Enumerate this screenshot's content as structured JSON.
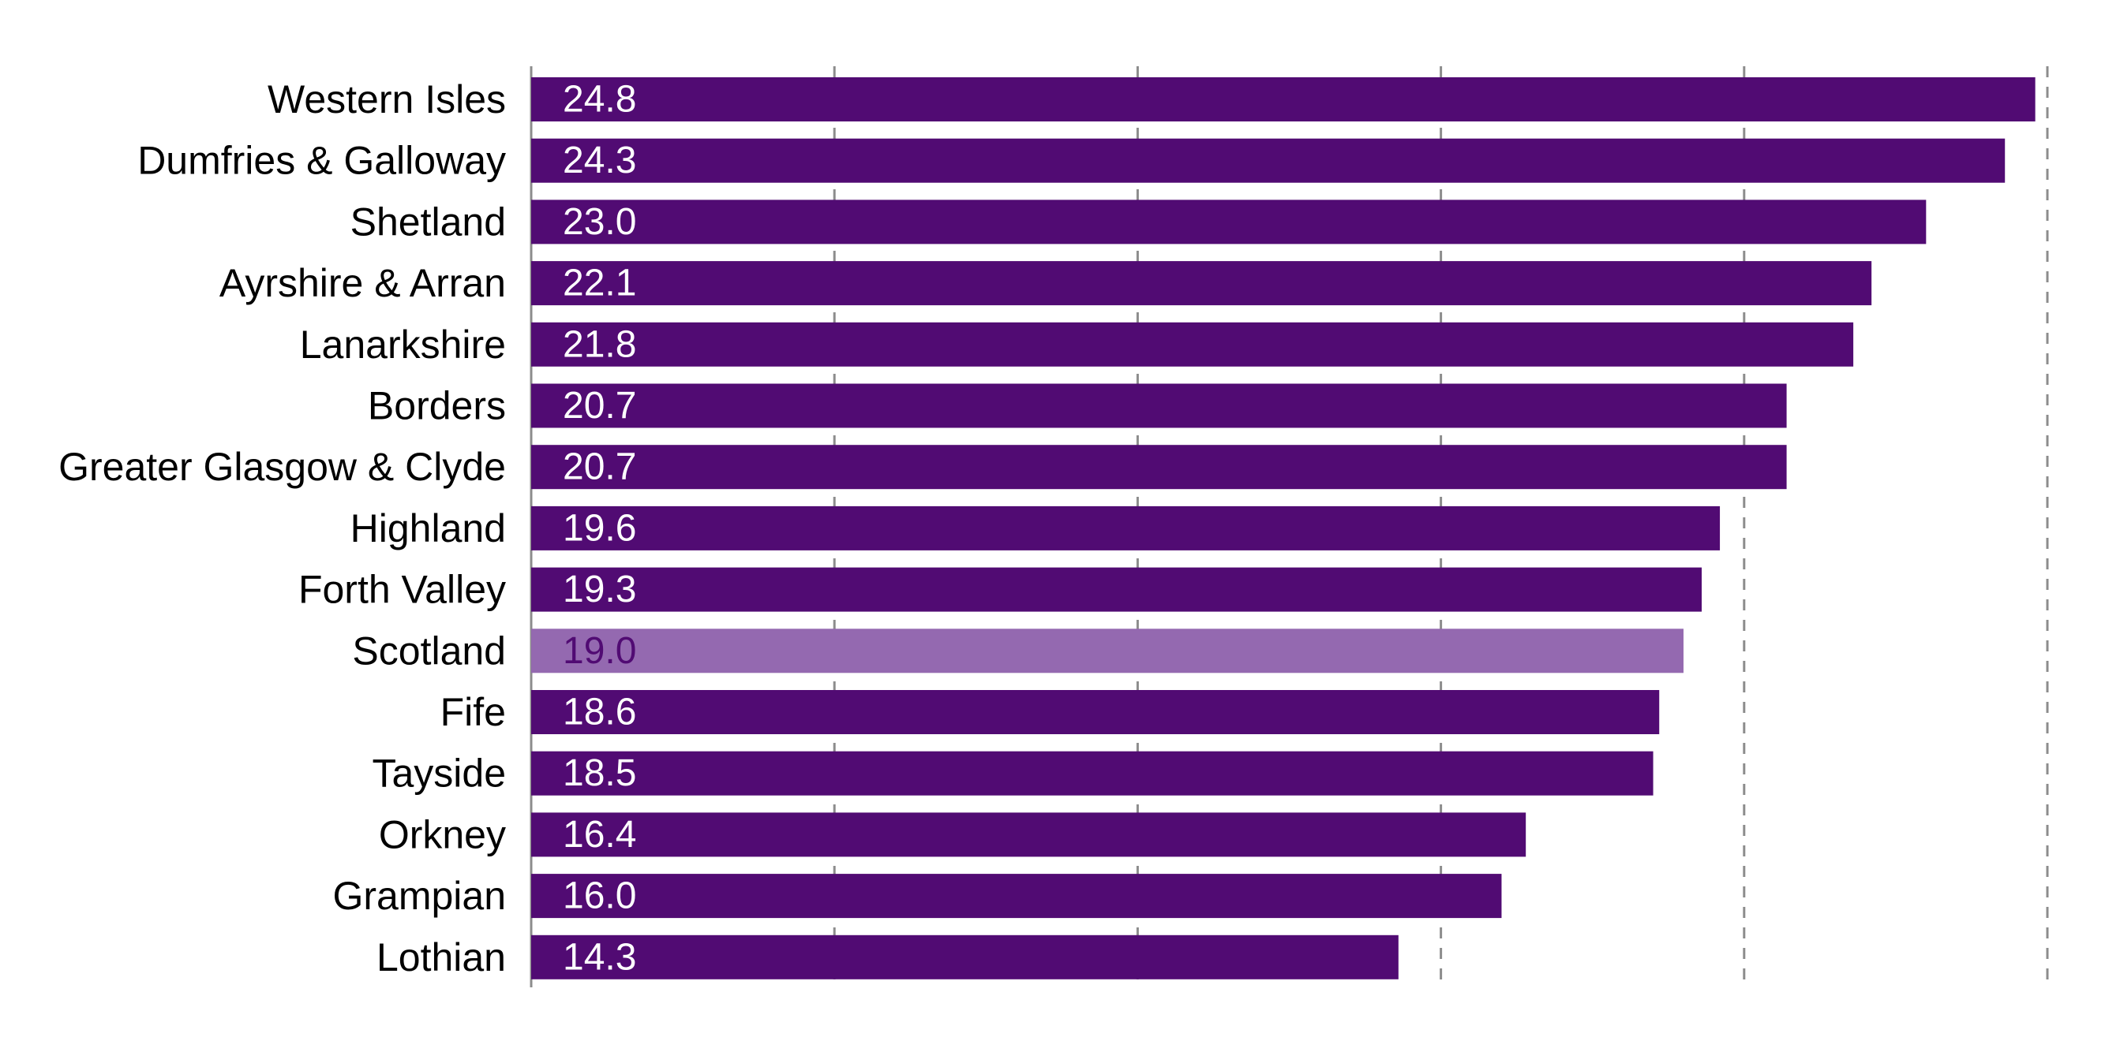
{
  "chart_data": {
    "type": "bar",
    "orientation": "horizontal",
    "title": "",
    "xlabel": "",
    "ylabel": "",
    "xlim": [
      0,
      25
    ],
    "grid": true,
    "grid_style": "dashed",
    "legend": "none",
    "categories": [
      "Western Isles",
      "Dumfries & Galloway",
      "Shetland",
      "Ayrshire & Arran",
      "Lanarkshire",
      "Borders",
      "Greater Glasgow & Clyde",
      "Highland",
      "Forth Valley",
      "Scotland",
      "Fife",
      "Tayside",
      "Orkney",
      "Grampian",
      "Lothian"
    ],
    "values": [
      24.8,
      24.3,
      23.0,
      22.1,
      21.8,
      20.7,
      20.7,
      19.6,
      19.3,
      19.0,
      18.6,
      18.5,
      16.4,
      16.0,
      14.3
    ],
    "value_labels": [
      "24.8",
      "24.3",
      "23.0",
      "22.1",
      "21.8",
      "20.7",
      "20.7",
      "19.6",
      "19.3",
      "19.0",
      "18.6",
      "18.5",
      "16.4",
      "16.0",
      "14.3"
    ],
    "highlight_category": "Scotland",
    "colors": {
      "bar": "#510b73",
      "highlight_bar": "#9469b0",
      "value_text": "#ffffff",
      "highlight_value_text": "#510b73",
      "gridline": "#8c8c8c",
      "label_text": "#000000"
    }
  }
}
